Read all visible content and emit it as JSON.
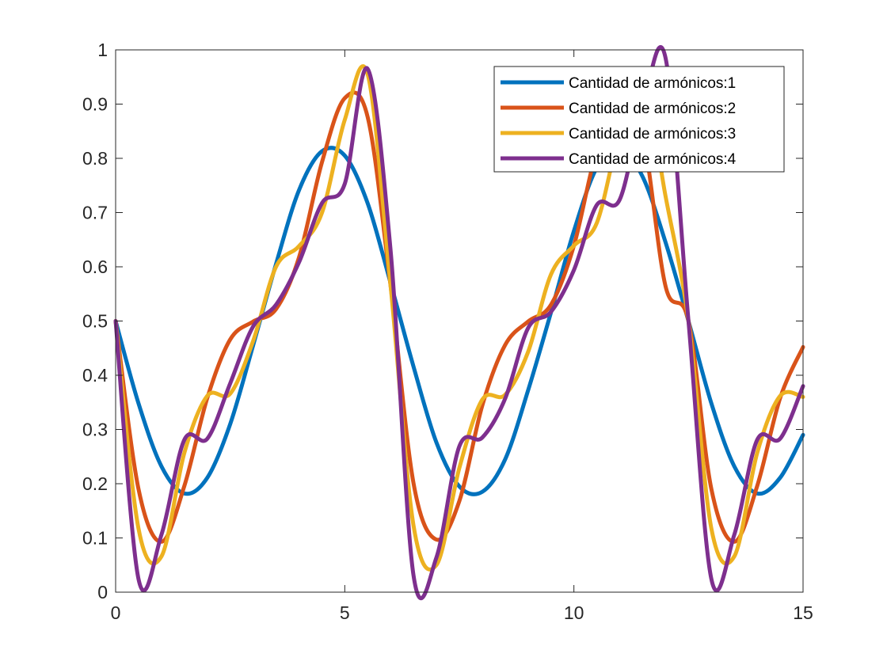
{
  "chart_data": {
    "type": "line",
    "title": "",
    "xlabel": "",
    "ylabel": "",
    "xlim": [
      0,
      15
    ],
    "ylim": [
      0,
      1
    ],
    "xticks": [
      0,
      5,
      10,
      15
    ],
    "yticks": [
      0,
      0.1,
      0.2,
      0.3,
      0.4,
      0.5,
      0.6,
      0.7,
      0.8,
      0.9,
      1
    ],
    "xtick_labels": [
      "0",
      "5",
      "10",
      "15"
    ],
    "ytick_labels": [
      "0",
      "0.1",
      "0.2",
      "0.3",
      "0.4",
      "0.5",
      "0.6",
      "0.7",
      "0.8",
      "0.9",
      "1"
    ],
    "grid": false,
    "legend_position": "top-right",
    "series": [
      {
        "name": "Cantidad de armónicos:1",
        "color": "#0072BD",
        "harmonics": 1,
        "x": [
          0,
          0.5,
          1,
          1.5,
          2,
          2.5,
          3,
          3.5,
          4,
          4.5,
          5,
          5.5,
          6,
          6.5,
          7,
          7.5,
          8,
          8.5,
          9,
          9.5,
          10,
          10.5,
          11,
          11.5,
          12,
          12.5,
          13,
          13.5,
          14,
          14.5,
          15
        ],
        "values": [
          0.5,
          0.348,
          0.232,
          0.182,
          0.211,
          0.31,
          0.455,
          0.605,
          0.741,
          0.813,
          0.805,
          0.717,
          0.57,
          0.416,
          0.276,
          0.195,
          0.185,
          0.245,
          0.372,
          0.516,
          0.666,
          0.783,
          0.818,
          0.766,
          0.645,
          0.5,
          0.348,
          0.232,
          0.182,
          0.211,
          0.29
        ]
      },
      {
        "name": "Cantidad de armónicos:2",
        "color": "#D95319",
        "harmonics": 2,
        "x": [
          0,
          0.5,
          1,
          1.5,
          2,
          2.5,
          3,
          3.5,
          4,
          4.5,
          5,
          5.5,
          6,
          6.5,
          7,
          7.5,
          8,
          8.5,
          9,
          9.5,
          10,
          10.5,
          11,
          11.5,
          12,
          12.5,
          13,
          13.5,
          14,
          14.5,
          15
        ],
        "values": [
          0.5,
          0.19,
          0.093,
          0.196,
          0.358,
          0.466,
          0.499,
          0.522,
          0.617,
          0.792,
          0.911,
          0.876,
          0.565,
          0.201,
          0.097,
          0.168,
          0.344,
          0.456,
          0.499,
          0.53,
          0.639,
          0.815,
          0.9,
          0.844,
          0.564,
          0.5,
          0.19,
          0.093,
          0.196,
          0.358,
          0.452
        ]
      },
      {
        "name": "Cantidad de armónicos:3",
        "color": "#EDB120",
        "harmonics": 3,
        "x": [
          0,
          0.5,
          1,
          1.5,
          2,
          2.5,
          3,
          3.5,
          4,
          4.5,
          5,
          5.5,
          6,
          6.5,
          7,
          7.5,
          8,
          8.5,
          9,
          9.5,
          10,
          10.5,
          11,
          11.5,
          12,
          12.5,
          13,
          13.5,
          14,
          14.5,
          15
        ],
        "values": [
          0.5,
          0.117,
          0.066,
          0.257,
          0.362,
          0.366,
          0.463,
          0.6,
          0.638,
          0.699,
          0.871,
          0.955,
          0.565,
          0.123,
          0.05,
          0.229,
          0.355,
          0.364,
          0.443,
          0.586,
          0.639,
          0.681,
          0.848,
          0.95,
          0.73,
          0.5,
          0.117,
          0.066,
          0.257,
          0.362,
          0.36
        ]
      },
      {
        "name": "Cantidad de armónicos:4",
        "color": "#7E2F8E",
        "harmonics": 4,
        "x": [
          0,
          0.5,
          1,
          1.5,
          2,
          2.5,
          3,
          3.5,
          4,
          4.5,
          5,
          5.5,
          6,
          6.5,
          7,
          7.5,
          8,
          8.5,
          9,
          9.5,
          10,
          10.5,
          11,
          11.5,
          12,
          12.5,
          13,
          13.5,
          14,
          14.5,
          15
        ],
        "values": [
          0.5,
          0.024,
          0.106,
          0.281,
          0.283,
          0.385,
          0.49,
          0.53,
          0.608,
          0.717,
          0.753,
          0.965,
          0.63,
          0.031,
          0.064,
          0.269,
          0.285,
          0.357,
          0.487,
          0.517,
          0.594,
          0.714,
          0.724,
          0.895,
          0.985,
          0.5,
          0.024,
          0.106,
          0.281,
          0.283,
          0.38
        ]
      }
    ]
  }
}
